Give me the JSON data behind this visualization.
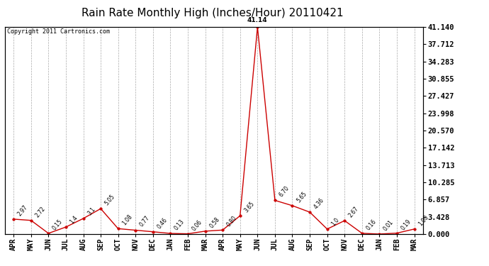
{
  "title": "Rain Rate Monthly High (Inches/Hour) 20110421",
  "copyright": "Copyright 2011 Cartronics.com",
  "labels": [
    "APR",
    "MAY",
    "JUN",
    "JUL",
    "AUG",
    "SEP",
    "OCT",
    "NOV",
    "DEC",
    "JAN",
    "FEB",
    "MAR",
    "APR",
    "MAY",
    "JUN",
    "JUL",
    "AUG",
    "SEP",
    "OCT",
    "NOV",
    "DEC",
    "JAN",
    "FEB",
    "MAR"
  ],
  "values": [
    2.97,
    2.72,
    0.15,
    1.4,
    3.1,
    5.05,
    1.08,
    0.77,
    0.46,
    0.13,
    0.06,
    0.58,
    0.8,
    3.65,
    41.14,
    6.7,
    5.65,
    4.36,
    1.0,
    2.67,
    0.16,
    0.01,
    0.19,
    1.0
  ],
  "value_labels": [
    "2.97",
    "2.72",
    "0.15",
    "1.4",
    "3.1",
    "5.05",
    "1.08",
    "0.77",
    "0.46",
    "0.13",
    "0.06",
    "0.58",
    "0.80",
    "3.65",
    "41.14",
    "6.70",
    "5.65",
    "4.36",
    "1.0",
    "2.67",
    "0.16",
    "0.01",
    "0.19",
    "1.00"
  ],
  "line_color": "#cc0000",
  "marker_color": "#cc0000",
  "bg_color": "#ffffff",
  "grid_color": "#aaaaaa",
  "title_fontsize": 11,
  "yticks": [
    0.0,
    3.428,
    6.857,
    10.285,
    13.713,
    17.142,
    20.57,
    23.998,
    27.427,
    30.855,
    34.283,
    37.712,
    41.14
  ],
  "ymax": 41.14,
  "ymin": 0.0
}
